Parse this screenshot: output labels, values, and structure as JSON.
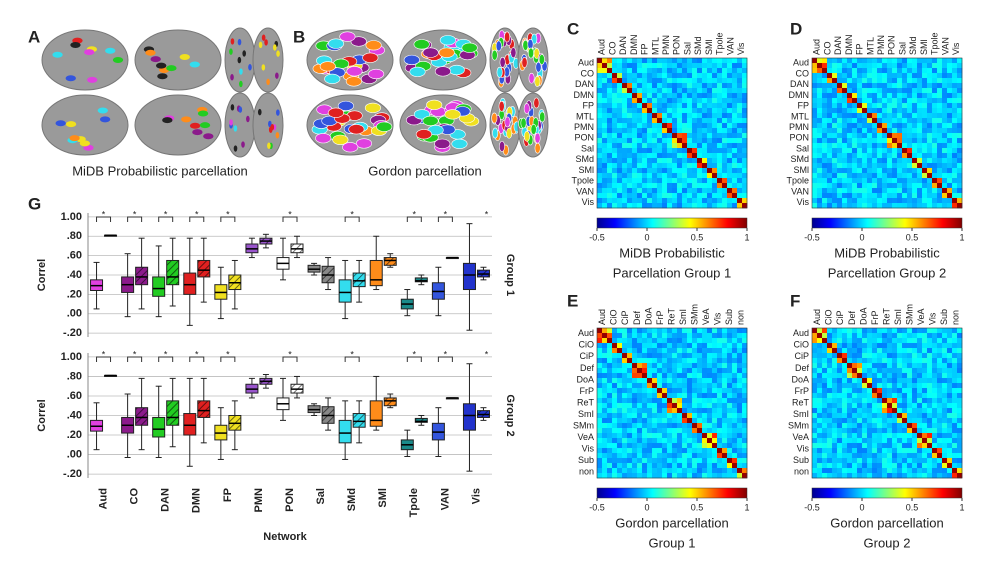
{
  "panels": [
    {
      "letter": "A",
      "caption": "MiDB Probabilistic parcellation"
    },
    {
      "letter": "B",
      "caption": "Gordon parcellation"
    }
  ],
  "heatmaps": [
    {
      "letter": "C",
      "labels": [
        "Aud",
        "CO",
        "DAN",
        "DMN",
        "FP",
        "MTL",
        "PMN",
        "PON",
        "Sal",
        "SMd",
        "SMl",
        "Tpole",
        "VAN",
        "Vis"
      ],
      "caption": [
        "MiDB Probabilistic",
        "Parcellation Group 1"
      ],
      "cbar_ticks": [
        -0.5,
        0,
        0.5,
        1
      ]
    },
    {
      "letter": "D",
      "labels": [
        "Aud",
        "CO",
        "DAN",
        "DMN",
        "FP",
        "MTL",
        "PMN",
        "PON",
        "Sal",
        "SMd",
        "SMl",
        "Tpole",
        "VAN",
        "Vis"
      ],
      "caption": [
        "MiDB Probabilistic",
        "Parcellation Group 2"
      ],
      "cbar_ticks": [
        -0.5,
        0,
        0.5,
        1
      ]
    },
    {
      "letter": "E",
      "labels": [
        "Aud",
        "CiO",
        "CiP",
        "Def",
        "DoA",
        "FrP",
        "ReT",
        "SmI",
        "SMm",
        "VeA",
        "Vis",
        "Sub",
        "non"
      ],
      "caption": [
        "Gordon parcellation",
        "Group 1"
      ],
      "cbar_ticks": [
        -0.5,
        0,
        0.5,
        1
      ]
    },
    {
      "letter": "F",
      "labels": [
        "Aud",
        "CiO",
        "CiP",
        "Def",
        "DoA",
        "FrP",
        "ReT",
        "SmI",
        "SMm",
        "VeA",
        "Vis",
        "Sub",
        "non"
      ],
      "caption": [
        "Gordon parcellation",
        "Group 2"
      ],
      "cbar_ticks": [
        -0.5,
        0,
        0.5,
        1
      ]
    }
  ],
  "chart_data": {
    "type": "box",
    "letter": "G",
    "ylabel": "Correl",
    "xlabel": "Network",
    "categories": [
      "Aud",
      "CO",
      "DAN",
      "DMN",
      "FP",
      "PMN",
      "PON",
      "Sal",
      "SMd",
      "SMl",
      "Tpole",
      "VAN",
      "Vis"
    ],
    "colors": [
      "#e040e0",
      "#8b1a8b",
      "#22cc22",
      "#e02020",
      "#f0e020",
      "#9955cc",
      "#ffffff",
      "#888888",
      "#33ddee",
      "#ff8c1a",
      "#1a8a8a",
      "#3355dd",
      "#2233cc"
    ],
    "significance": [
      "*",
      "*",
      "*",
      "*",
      "*",
      null,
      "*",
      null,
      "*",
      null,
      "*",
      "*",
      "*"
    ],
    "ylim": [
      -0.24,
      1.04
    ],
    "yticks": [
      {
        "value": -0.2,
        "label": "-.20"
      },
      {
        "value": 0,
        "label": ".00"
      },
      {
        "value": 0.2,
        "label": ".20"
      },
      {
        "value": 0.4,
        "label": ".40"
      },
      {
        "value": 0.6,
        "label": ".60"
      },
      {
        "value": 0.8,
        "label": ".80"
      },
      {
        "value": 1,
        "label": "1.00"
      }
    ],
    "grid": true,
    "groups": [
      {
        "name": "Group 1",
        "solid": [
          [
            0.05,
            0.24,
            0.29,
            0.35,
            0.53
          ],
          [
            -0.03,
            0.22,
            0.3,
            0.38,
            0.62
          ],
          [
            -0.03,
            0.18,
            0.26,
            0.38,
            0.7
          ],
          [
            -0.12,
            0.2,
            0.3,
            0.42,
            0.78
          ],
          [
            -0.05,
            0.15,
            0.22,
            0.3,
            0.48
          ],
          [
            0.58,
            0.63,
            0.67,
            0.72,
            0.78
          ],
          [
            0.35,
            0.46,
            0.52,
            0.58,
            0.78
          ],
          [
            0.4,
            0.43,
            0.46,
            0.5,
            0.52
          ],
          [
            -0.05,
            0.12,
            0.22,
            0.35,
            0.55
          ],
          [
            0.25,
            0.29,
            0.35,
            0.55,
            0.8
          ],
          [
            -0.02,
            0.05,
            0.1,
            0.15,
            0.25
          ],
          [
            -0.02,
            0.15,
            0.23,
            0.32,
            0.48
          ],
          [
            -0.17,
            0.25,
            0.4,
            0.52,
            0.93
          ]
        ],
        "hatched": [
          [
            0.81,
            0.81,
            0.81,
            0.81,
            0.81
          ],
          [
            0.05,
            0.3,
            0.38,
            0.48,
            0.78
          ],
          [
            0.08,
            0.3,
            0.38,
            0.55,
            0.78
          ],
          [
            0.12,
            0.38,
            0.45,
            0.55,
            0.78
          ],
          [
            0.05,
            0.25,
            0.32,
            0.4,
            0.55
          ],
          [
            0.68,
            0.72,
            0.75,
            0.78,
            0.82
          ],
          [
            0.58,
            0.63,
            0.67,
            0.72,
            0.8
          ],
          [
            0.25,
            0.32,
            0.4,
            0.49,
            0.58
          ],
          [
            0.12,
            0.28,
            0.34,
            0.42,
            0.55
          ],
          [
            0.48,
            0.5,
            0.55,
            0.58,
            0.62
          ],
          [
            0.3,
            0.33,
            0.34,
            0.37,
            0.4
          ],
          [
            0.58,
            0.58,
            0.58,
            0.58,
            0.58
          ],
          [
            0.35,
            0.38,
            0.41,
            0.45,
            0.48
          ]
        ]
      },
      {
        "name": "Group 2",
        "solid": [
          [
            0.05,
            0.24,
            0.29,
            0.35,
            0.53
          ],
          [
            -0.03,
            0.22,
            0.3,
            0.38,
            0.62
          ],
          [
            -0.03,
            0.18,
            0.26,
            0.38,
            0.7
          ],
          [
            -0.12,
            0.2,
            0.3,
            0.42,
            0.78
          ],
          [
            -0.05,
            0.15,
            0.22,
            0.3,
            0.48
          ],
          [
            0.58,
            0.63,
            0.67,
            0.72,
            0.78
          ],
          [
            0.35,
            0.46,
            0.52,
            0.58,
            0.78
          ],
          [
            0.4,
            0.43,
            0.46,
            0.5,
            0.52
          ],
          [
            -0.05,
            0.12,
            0.22,
            0.35,
            0.55
          ],
          [
            0.25,
            0.29,
            0.35,
            0.55,
            0.8
          ],
          [
            -0.02,
            0.05,
            0.1,
            0.15,
            0.25
          ],
          [
            -0.02,
            0.15,
            0.23,
            0.32,
            0.48
          ],
          [
            -0.17,
            0.25,
            0.4,
            0.52,
            0.93
          ]
        ],
        "hatched": [
          [
            0.81,
            0.81,
            0.81,
            0.81,
            0.81
          ],
          [
            0.05,
            0.3,
            0.38,
            0.48,
            0.78
          ],
          [
            0.08,
            0.3,
            0.38,
            0.55,
            0.78
          ],
          [
            0.12,
            0.38,
            0.45,
            0.55,
            0.78
          ],
          [
            0.05,
            0.25,
            0.32,
            0.4,
            0.55
          ],
          [
            0.68,
            0.72,
            0.75,
            0.78,
            0.82
          ],
          [
            0.58,
            0.63,
            0.67,
            0.72,
            0.8
          ],
          [
            0.25,
            0.32,
            0.4,
            0.49,
            0.58
          ],
          [
            0.12,
            0.28,
            0.34,
            0.42,
            0.55
          ],
          [
            0.48,
            0.5,
            0.55,
            0.58,
            0.62
          ],
          [
            0.3,
            0.33,
            0.34,
            0.37,
            0.4
          ],
          [
            0.58,
            0.58,
            0.58,
            0.58,
            0.58
          ],
          [
            0.35,
            0.38,
            0.41,
            0.45,
            0.48
          ]
        ]
      }
    ]
  }
}
